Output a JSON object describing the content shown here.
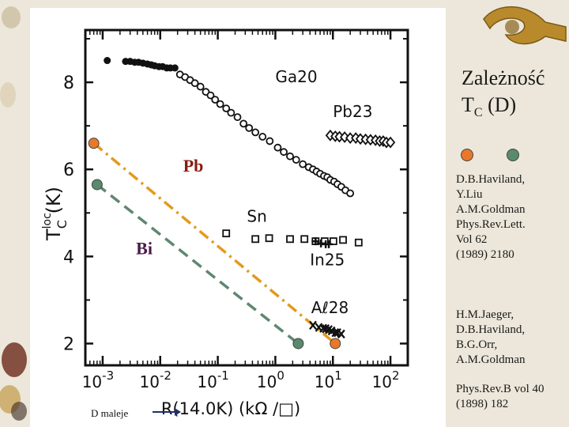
{
  "slide": {
    "title_main": "Zależność",
    "title_t": "T",
    "title_sub": "C",
    "title_tail": " (D)",
    "bottom_label": "D maleje",
    "ref1": [
      "D.B.Haviland,",
      "Y.Liu",
      "A.M.Goldman",
      "Phys.Rev.Lett.",
      "Vol 62",
      "(1989) 2180"
    ],
    "ref2": [
      "H.M.Jaeger,",
      "D.B.Haviland,",
      "B.G.Orr,",
      "A.M.Goldman"
    ],
    "ref3": [
      "Phys.Rev.B vol 40",
      "(1898) 182"
    ],
    "colors": {
      "pb": "#e8782a",
      "bi": "#5a8a6e",
      "pb_line": "#e39a1d",
      "bi_line": "#5f8771"
    }
  },
  "chart_data": {
    "type": "scatter",
    "xscale": "log",
    "xlim": [
      0.0005,
      200
    ],
    "ylim": [
      1.5,
      9.2
    ],
    "xticks": [
      {
        "v": 0.001,
        "base": "10",
        "exp": "-3"
      },
      {
        "v": 0.01,
        "base": "10",
        "exp": "-2"
      },
      {
        "v": 0.1,
        "base": "10",
        "exp": "-1"
      },
      {
        "v": 1,
        "base": "10",
        "exp": "0"
      },
      {
        "v": 10,
        "base": "10",
        "exp": "1"
      },
      {
        "v": 100,
        "base": "10",
        "exp": "2"
      }
    ],
    "yticks": [
      2,
      4,
      6,
      8
    ],
    "xlabel": "R(14.0K)   (kΩ /□)",
    "ylabel": {
      "base": "T",
      "sup": "loc",
      "sub": "C",
      "unit": "(K)"
    },
    "series_labels": [
      {
        "text": "Ga20",
        "x": 1.0,
        "y": 8.0
      },
      {
        "text": "Pb23",
        "x": 10,
        "y": 7.2
      },
      {
        "text": "Sn",
        "x": 0.32,
        "y": 4.8
      },
      {
        "text": "In25",
        "x": 4.0,
        "y": 3.8
      },
      {
        "text": "Aℓ28",
        "x": 4.2,
        "y": 2.7
      }
    ],
    "series": [
      {
        "name": "filled",
        "marker": "filled-circle",
        "points": [
          [
            0.0012,
            8.5
          ],
          [
            0.0025,
            8.48
          ],
          [
            0.003,
            8.48
          ],
          [
            0.0036,
            8.46
          ],
          [
            0.0042,
            8.46
          ],
          [
            0.005,
            8.44
          ],
          [
            0.006,
            8.42
          ],
          [
            0.007,
            8.4
          ],
          [
            0.008,
            8.38
          ],
          [
            0.0095,
            8.36
          ],
          [
            0.011,
            8.36
          ],
          [
            0.013,
            8.33
          ],
          [
            0.015,
            8.33
          ],
          [
            0.018,
            8.33
          ]
        ]
      },
      {
        "name": "Ga20",
        "marker": "open-circle",
        "points": [
          [
            0.022,
            8.18
          ],
          [
            0.027,
            8.12
          ],
          [
            0.033,
            8.05
          ],
          [
            0.04,
            7.98
          ],
          [
            0.05,
            7.9
          ],
          [
            0.062,
            7.78
          ],
          [
            0.075,
            7.7
          ],
          [
            0.09,
            7.6
          ],
          [
            0.11,
            7.5
          ],
          [
            0.14,
            7.4
          ],
          [
            0.17,
            7.3
          ],
          [
            0.22,
            7.2
          ],
          [
            0.28,
            7.05
          ],
          [
            0.35,
            6.95
          ],
          [
            0.45,
            6.85
          ],
          [
            0.6,
            6.75
          ],
          [
            0.8,
            6.65
          ],
          [
            1.1,
            6.5
          ],
          [
            1.4,
            6.4
          ],
          [
            1.8,
            6.3
          ],
          [
            2.3,
            6.22
          ],
          [
            3.0,
            6.12
          ],
          [
            3.8,
            6.05
          ],
          [
            4.5,
            6.0
          ],
          [
            5.2,
            5.95
          ],
          [
            6.0,
            5.9
          ],
          [
            7.0,
            5.85
          ],
          [
            8.0,
            5.82
          ],
          [
            9.0,
            5.76
          ],
          [
            10.5,
            5.72
          ],
          [
            12.0,
            5.66
          ],
          [
            14.0,
            5.6
          ],
          [
            16.5,
            5.52
          ],
          [
            20.0,
            5.45
          ]
        ]
      },
      {
        "name": "Pb23",
        "marker": "open-diamond",
        "points": [
          [
            9,
            6.78
          ],
          [
            11,
            6.76
          ],
          [
            13,
            6.75
          ],
          [
            16,
            6.74
          ],
          [
            20,
            6.72
          ],
          [
            25,
            6.72
          ],
          [
            30,
            6.7
          ],
          [
            37,
            6.69
          ],
          [
            45,
            6.68
          ],
          [
            55,
            6.67
          ],
          [
            65,
            6.65
          ],
          [
            75,
            6.65
          ],
          [
            85,
            6.62
          ],
          [
            100,
            6.62
          ]
        ]
      },
      {
        "name": "Sn",
        "marker": "open-square",
        "points": [
          [
            0.14,
            4.53
          ],
          [
            0.45,
            4.4
          ],
          [
            0.78,
            4.42
          ],
          [
            1.8,
            4.4
          ],
          [
            3.2,
            4.4
          ],
          [
            5.0,
            4.35
          ],
          [
            7.2,
            4.35
          ],
          [
            10.2,
            4.35
          ],
          [
            15.0,
            4.38
          ],
          [
            28.0,
            4.32
          ]
        ]
      },
      {
        "name": "In25",
        "marker": "cross",
        "points": [
          [
            5.0,
            4.35
          ],
          [
            6.2,
            4.3
          ],
          [
            7.5,
            4.28
          ],
          [
            8.5,
            4.28
          ]
        ]
      },
      {
        "name": "Al28",
        "marker": "x",
        "points": [
          [
            4.5,
            2.42
          ],
          [
            5.7,
            2.37
          ],
          [
            6.8,
            2.35
          ],
          [
            7.5,
            2.34
          ],
          [
            8.5,
            2.32
          ],
          [
            9.5,
            2.29
          ],
          [
            11.0,
            2.25
          ],
          [
            12.0,
            2.25
          ],
          [
            14.0,
            2.22
          ]
        ]
      }
    ],
    "overlays": [
      {
        "label": "Pb",
        "style": "dash-dot",
        "endpoints": [
          [
            0.0007,
            6.6
          ],
          [
            11,
            2.0
          ]
        ],
        "label_x": 0.025,
        "label_y": 5.95
      },
      {
        "label": "Bi",
        "style": "dashed",
        "endpoints": [
          [
            0.0008,
            5.65
          ],
          [
            2.5,
            2.0
          ]
        ],
        "label_x": 0.0038,
        "label_y": 4.05
      }
    ]
  }
}
